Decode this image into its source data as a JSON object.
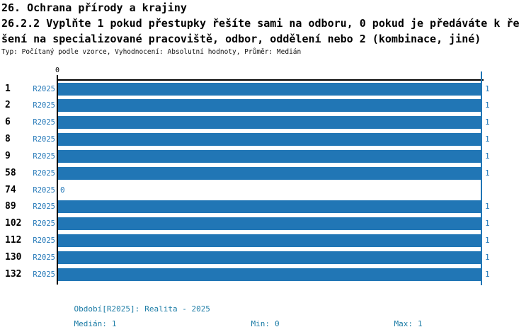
{
  "header": {
    "title": "26. Ochrana přírody a krajiny",
    "question_line1": "26.2.2 Vyplňte 1 pokud přestupky řešíte sami na odboru, 0 pokud je předáváte k ře",
    "question_line2": "šení na specializované pracoviště, odbor, oddělení nebo 2 (kombinace, jiné)",
    "meta_line": "Typ: Počítaný podle vzorce, Vyhodnocení: Absolutní hodnoty, Průměr: Medián"
  },
  "axis": {
    "origin_tick_label": "0"
  },
  "rows": [
    {
      "id": "1",
      "period": "R2025",
      "value": 1
    },
    {
      "id": "2",
      "period": "R2025",
      "value": 1
    },
    {
      "id": "6",
      "period": "R2025",
      "value": 1
    },
    {
      "id": "8",
      "period": "R2025",
      "value": 1
    },
    {
      "id": "9",
      "period": "R2025",
      "value": 1
    },
    {
      "id": "58",
      "period": "R2025",
      "value": 1
    },
    {
      "id": "74",
      "period": "R2025",
      "value": 0
    },
    {
      "id": "89",
      "period": "R2025",
      "value": 1
    },
    {
      "id": "102",
      "period": "R2025",
      "value": 1
    },
    {
      "id": "112",
      "period": "R2025",
      "value": 1
    },
    {
      "id": "130",
      "period": "R2025",
      "value": 1
    },
    {
      "id": "132",
      "period": "R2025",
      "value": 1
    }
  ],
  "footer": {
    "period_label": "Období[R2025]:",
    "period_value": "Realita - 2025",
    "median_label": "Medián:",
    "median_value": "1",
    "min_label": "Min:",
    "min_value": "0",
    "max_label": "Max:",
    "max_value": "1"
  },
  "colors": {
    "bar": "#2176B5",
    "blue_text": "#2478B8",
    "footer_text": "#1C7CA6",
    "axis": "#000000",
    "background": "#FFFFFF"
  },
  "chart_data": {
    "type": "bar",
    "orientation": "horizontal",
    "title": "26.2.2 Vyplňte 1 pokud přestupky řešíte sami na odboru, 0 pokud je předáváte k řešení na specializované pracoviště, odbor, oddělení nebo 2 (kombinace, jiné)",
    "subtitle": "26. Ochrana přírody a krajiny",
    "categories": [
      "1",
      "2",
      "6",
      "8",
      "9",
      "58",
      "74",
      "89",
      "102",
      "112",
      "130",
      "132"
    ],
    "series": [
      {
        "name": "R2025",
        "values": [
          1,
          1,
          1,
          1,
          1,
          1,
          0,
          1,
          1,
          1,
          1,
          1
        ]
      }
    ],
    "xlim": [
      0,
      1
    ],
    "xlabel": "",
    "ylabel": "",
    "grid": false,
    "legend_position": "none",
    "data_labels": true,
    "stats": {
      "median": 1,
      "min": 0,
      "max": 1
    },
    "period": "Realita - 2025"
  }
}
